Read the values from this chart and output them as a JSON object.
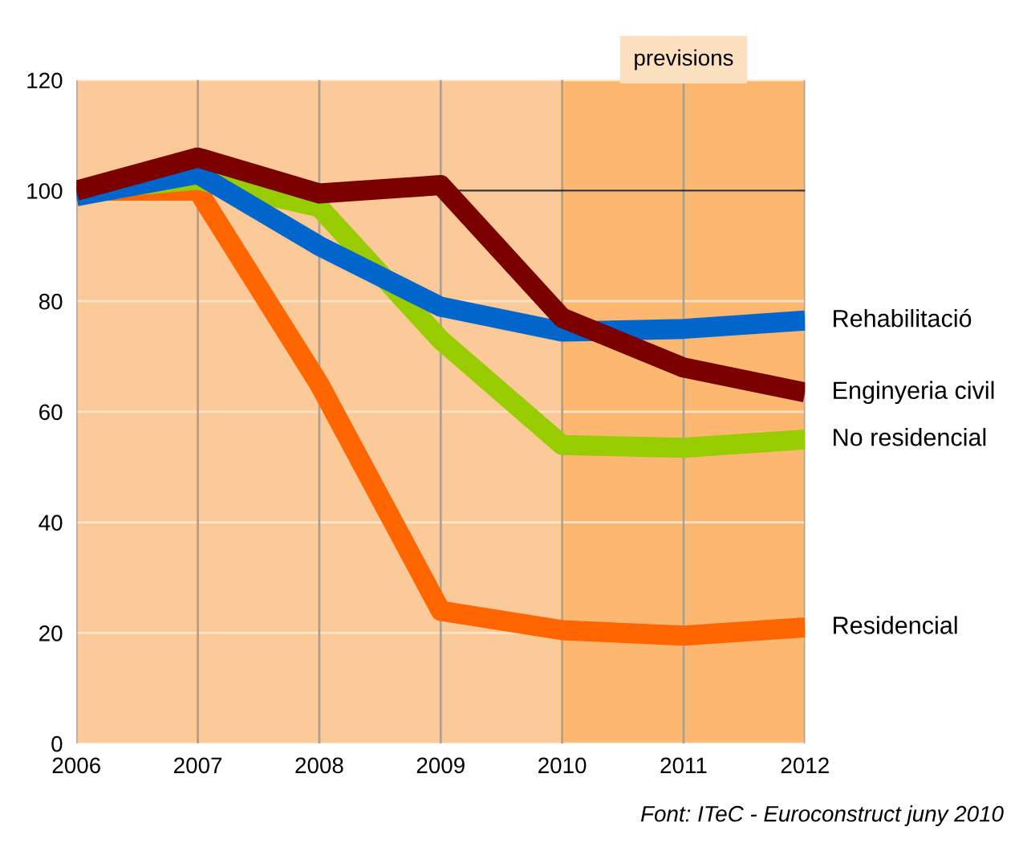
{
  "chart_data": {
    "type": "line",
    "x": [
      2006,
      2007,
      2008,
      2009,
      2010,
      2011,
      2012
    ],
    "series": [
      {
        "name": "Residencial",
        "color": "#ff6600",
        "values": [
          100,
          100,
          65,
          24,
          20.5,
          19.5,
          21
        ]
      },
      {
        "name": "No residencial",
        "color": "#99cc00",
        "values": [
          100,
          102,
          97,
          73,
          54,
          53.5,
          55
        ]
      },
      {
        "name": "Rehabilitació",
        "color": "#0066cc",
        "values": [
          99,
          103,
          90,
          79,
          74.5,
          75,
          76.5
        ]
      },
      {
        "name": "Enginyeria civil",
        "color": "#7a0000",
        "values": [
          100,
          106,
          99.5,
          101,
          77,
          68,
          63.5
        ]
      }
    ],
    "xlim": [
      2006,
      2012
    ],
    "xticks": [
      2006,
      2007,
      2008,
      2009,
      2010,
      2011,
      2012
    ],
    "ylim": [
      0,
      120
    ],
    "yticks": [
      0,
      20,
      40,
      60,
      80,
      100,
      120
    ],
    "grid": true,
    "legend": false,
    "marker": "none",
    "line_style": "solid",
    "ref_lines": [
      {
        "axis": "y",
        "value": 100,
        "color": "#333333"
      }
    ],
    "bands": [
      {
        "axis": "x",
        "from": 2010,
        "to": 2012,
        "label": "previsions",
        "color": "#fbb468"
      }
    ],
    "annotations": [
      "Font: ITeC - Euroconstruct juny 2010"
    ]
  }
}
